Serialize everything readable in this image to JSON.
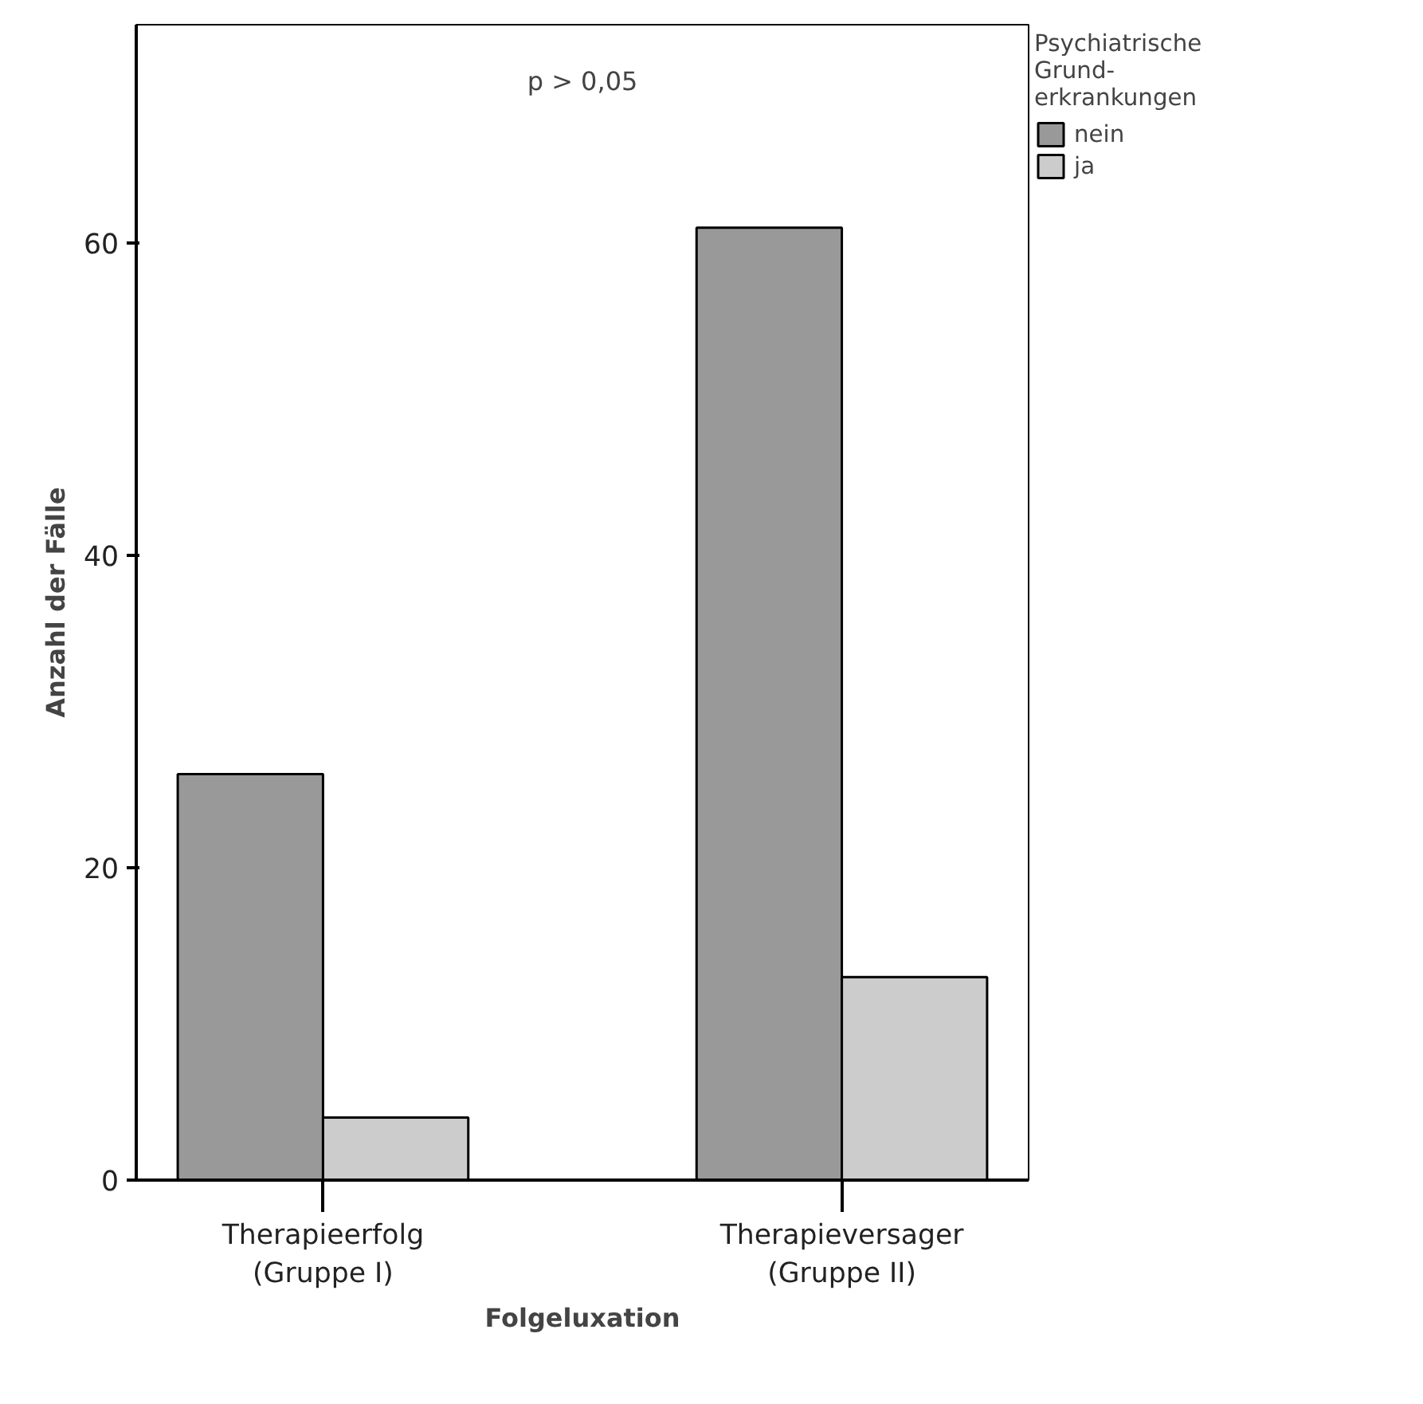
{
  "chart_data": {
    "type": "bar",
    "xlabel": "Folgeluxation",
    "ylabel": "Anzahl der Fälle",
    "legend_title": "Psychiatrische\nGrund-\nerkrankungen",
    "categories": [
      "Therapieerfolg\n(Gruppe I)",
      "Therapieversager\n(Gruppe II)"
    ],
    "series": [
      {
        "name": "nein",
        "color": "#999999",
        "values": [
          26,
          61
        ]
      },
      {
        "name": "ja",
        "color": "#cccccc",
        "values": [
          4,
          13
        ]
      }
    ],
    "ylim": [
      0,
      74
    ],
    "yticks": [
      0,
      20,
      40,
      60
    ],
    "grid": false,
    "legend": "right",
    "annotations": [
      "p > 0,05"
    ]
  }
}
